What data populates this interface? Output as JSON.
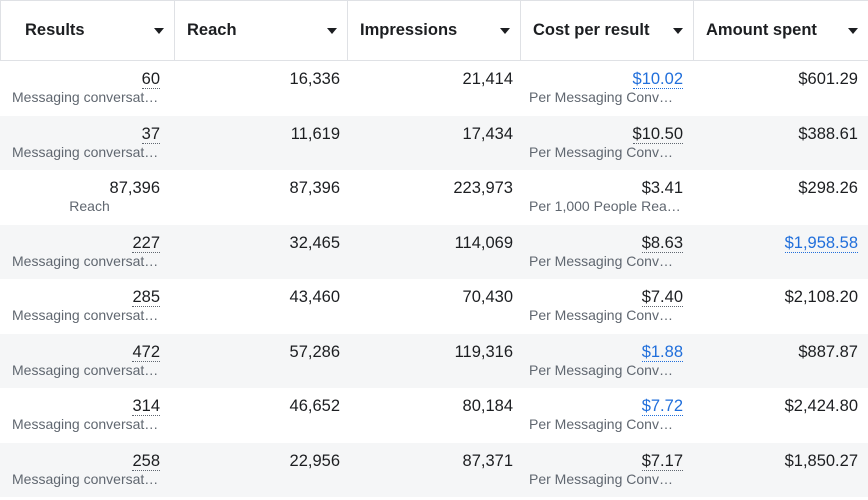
{
  "columns": [
    {
      "label": "Results"
    },
    {
      "label": "Reach"
    },
    {
      "label": "Impressions"
    },
    {
      "label": "Cost per result"
    },
    {
      "label": "Amount spent"
    }
  ],
  "rows": [
    {
      "results": "60",
      "results_sub": "Messaging conversat…",
      "reach": "16,336",
      "impressions": "21,414",
      "cost": "$10.02",
      "cost_sub": "Per Messaging Conv…",
      "spent": "$601.29"
    },
    {
      "results": "37",
      "results_sub": "Messaging conversat…",
      "reach": "11,619",
      "impressions": "17,434",
      "cost": "$10.50",
      "cost_sub": "Per Messaging Conv…",
      "spent": "$388.61"
    },
    {
      "results": "87,396",
      "results_sub": "Reach",
      "reach": "87,396",
      "impressions": "223,973",
      "cost": "$3.41",
      "cost_sub": "Per 1,000 People Rea…",
      "spent": "$298.26"
    },
    {
      "results": "227",
      "results_sub": "Messaging conversat…",
      "reach": "32,465",
      "impressions": "114,069",
      "cost": "$8.63",
      "cost_sub": "Per Messaging Conv…",
      "spent": "$1,958.58"
    },
    {
      "results": "285",
      "results_sub": "Messaging conversat…",
      "reach": "43,460",
      "impressions": "70,430",
      "cost": "$7.40",
      "cost_sub": "Per Messaging Conv…",
      "spent": "$2,108.20"
    },
    {
      "results": "472",
      "results_sub": "Messaging conversat…",
      "reach": "57,286",
      "impressions": "119,316",
      "cost": "$1.88",
      "cost_sub": "Per Messaging Conv…",
      "spent": "$887.87"
    },
    {
      "results": "314",
      "results_sub": "Messaging conversat…",
      "reach": "46,652",
      "impressions": "80,184",
      "cost": "$7.72",
      "cost_sub": "Per Messaging Conv…",
      "spent": "$2,424.80"
    },
    {
      "results": "258",
      "results_sub": "Messaging conversat…",
      "reach": "22,956",
      "impressions": "87,371",
      "cost": "$7.17",
      "cost_sub": "Per Messaging Conv…",
      "spent": "$1,850.27"
    }
  ],
  "colors": {
    "link": "#216fdb",
    "alt_row": "#f5f6f7",
    "border": "#dfe1e5"
  }
}
